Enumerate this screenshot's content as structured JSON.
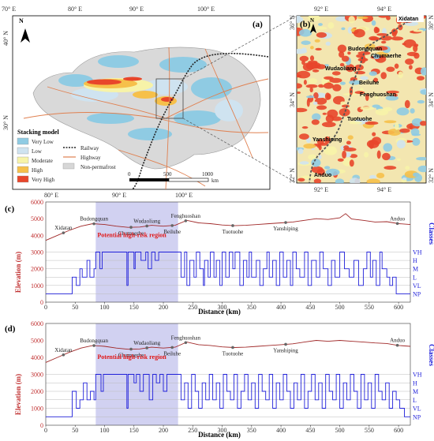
{
  "panel_a": {
    "label": "(a)",
    "north": "N",
    "lon_ticks": [
      "70° E",
      "80° E",
      "90° E",
      "100° E"
    ],
    "lon_ticks_bottom": [
      "80° E",
      "90° E",
      "100° E"
    ],
    "lat_ticks": [
      "40° N",
      "30° N"
    ],
    "scale_labels": [
      "0",
      "500",
      "1000"
    ],
    "scale_unit": "km",
    "legend_title": "Stacking model",
    "legend_items": [
      {
        "label": "Very Low",
        "color": "#8fcbe3"
      },
      {
        "label": "Low",
        "color": "#cfe3f0"
      },
      {
        "label": "Moderate",
        "color": "#f7f3a8"
      },
      {
        "label": "High",
        "color": "#f6c04a"
      },
      {
        "label": "Very High",
        "color": "#e8462b"
      }
    ],
    "legend_lines": [
      {
        "label": "Railway"
      },
      {
        "label": "Highway"
      }
    ],
    "legend_nonperm": {
      "label": "Non-permafrost",
      "color": "#d7d7d7"
    }
  },
  "panel_b": {
    "label": "(b)",
    "north": "N",
    "lon_ticks_top": [
      "92° E",
      "94° E"
    ],
    "lon_ticks_bottom": [
      "92° E",
      "94° E"
    ],
    "lat_ticks_left": [
      "36° N",
      "34° N",
      "32° N"
    ],
    "lat_ticks_right": [
      "36° N",
      "34° N",
      "32° N"
    ],
    "stations": [
      "Xidatan",
      "Budongquan",
      "Chumaerhe",
      "Wudaoliang",
      "Beiluhe",
      "Fenghuoshan",
      "Tuotuohe",
      "Yanshiping",
      "Anduo"
    ]
  },
  "chart_data": [
    {
      "type": "line",
      "panel": "(c)",
      "xlabel": "Distance (km)",
      "ylabel_left": "Elevation (m)",
      "ylabel_right": "Classes",
      "x_ticks": [
        0,
        50,
        100,
        150,
        200,
        250,
        300,
        350,
        400,
        450,
        500,
        550,
        600
      ],
      "xlim": [
        0,
        620
      ],
      "y_left_ticks": [
        0,
        1000,
        2000,
        3000,
        4000,
        5000,
        6000
      ],
      "ylim_left": [
        0,
        6000
      ],
      "class_labels": [
        "VH",
        "H",
        "M",
        "L",
        "VL",
        "NP"
      ],
      "highlight": {
        "x_range": [
          85,
          225
        ],
        "label": "Potential high-risk region"
      },
      "elevation": {
        "x": [
          0,
          20,
          40,
          60,
          80,
          100,
          120,
          140,
          160,
          180,
          200,
          220,
          240,
          260,
          280,
          300,
          320,
          340,
          360,
          380,
          400,
          420,
          440,
          460,
          480,
          500,
          510,
          520,
          540,
          560,
          580,
          600,
          620
        ],
        "y": [
          3700,
          4000,
          4300,
          4550,
          4700,
          4650,
          4550,
          4480,
          4500,
          4600,
          4550,
          4600,
          4900,
          4750,
          4700,
          4620,
          4580,
          4600,
          4650,
          4700,
          4750,
          4800,
          4900,
          5000,
          4950,
          5050,
          5300,
          4980,
          4900,
          4800,
          4820,
          4700,
          4650
        ]
      },
      "stations": [
        {
          "name": "Xidatan",
          "x": 30
        },
        {
          "name": "Budongquan",
          "x": 82
        },
        {
          "name": "Chumaerhe",
          "x": 145
        },
        {
          "name": "Wudaoliang",
          "x": 172
        },
        {
          "name": "Beiluhe",
          "x": 215
        },
        {
          "name": "Fenghuoshan",
          "x": 238
        },
        {
          "name": "Tuotuohe",
          "x": 318
        },
        {
          "name": "Yanshiping",
          "x": 408
        },
        {
          "name": "Anduo",
          "x": 598
        }
      ],
      "classes": {
        "x": [
          0,
          40,
          45,
          52,
          58,
          62,
          70,
          75,
          82,
          85,
          90,
          92,
          96,
          100,
          105,
          138,
          140,
          142,
          150,
          152,
          160,
          162,
          170,
          174,
          180,
          186,
          192,
          198,
          205,
          228,
          230,
          236,
          240,
          245,
          252,
          256,
          262,
          268,
          270,
          276,
          280,
          286,
          290,
          296,
          300,
          306,
          312,
          318,
          322,
          330,
          336,
          342,
          346,
          350,
          358,
          364,
          370,
          376,
          380,
          386,
          392,
          398,
          404,
          410,
          416,
          420,
          426,
          432,
          440,
          446,
          452,
          460,
          466,
          472,
          480,
          486,
          492,
          500,
          508,
          516,
          524,
          532,
          540,
          546,
          552,
          556,
          562,
          568,
          572,
          580,
          585,
          590,
          596,
          602,
          610,
          620
        ],
        "y": [
          0,
          0,
          2,
          1,
          3,
          2,
          4,
          2,
          3,
          5,
          5,
          3,
          5,
          5,
          5,
          1,
          5,
          5,
          3,
          5,
          5,
          4,
          5,
          3,
          5,
          4,
          5,
          5,
          5,
          5,
          2,
          5,
          1,
          4,
          2,
          5,
          3,
          1,
          4,
          2,
          5,
          2,
          4,
          1,
          5,
          2,
          5,
          3,
          5,
          1,
          4,
          2,
          5,
          2,
          4,
          1,
          3,
          5,
          2,
          4,
          1,
          5,
          2,
          4,
          1,
          5,
          3,
          2,
          5,
          1,
          4,
          2,
          5,
          3,
          1,
          4,
          2,
          5,
          3,
          2,
          4,
          1,
          3,
          5,
          2,
          4,
          1,
          5,
          3,
          2,
          1,
          2,
          0,
          0,
          0,
          0
        ]
      }
    },
    {
      "type": "line",
      "panel": "(d)",
      "xlabel": "Distance (km)",
      "ylabel_left": "Elevation (m)",
      "ylabel_right": "Classes",
      "x_ticks": [
        0,
        50,
        100,
        150,
        200,
        250,
        300,
        350,
        400,
        450,
        500,
        550,
        600
      ],
      "xlim": [
        0,
        620
      ],
      "y_left_ticks": [
        0,
        1000,
        2000,
        3000,
        4000,
        5000,
        6000
      ],
      "ylim_left": [
        0,
        6000
      ],
      "class_labels": [
        "VH",
        "H",
        "M",
        "L",
        "VL",
        "NP"
      ],
      "highlight": {
        "x_range": [
          85,
          225
        ],
        "label": "Potential high-risk region"
      },
      "elevation": {
        "x": [
          0,
          20,
          40,
          60,
          80,
          100,
          120,
          140,
          160,
          180,
          200,
          220,
          240,
          260,
          280,
          300,
          320,
          340,
          360,
          380,
          400,
          420,
          440,
          460,
          480,
          500,
          520,
          540,
          560,
          580,
          600,
          620
        ],
        "y": [
          3700,
          4000,
          4300,
          4550,
          4700,
          4650,
          4550,
          4480,
          4500,
          4600,
          4550,
          4600,
          4900,
          4750,
          4700,
          4620,
          4580,
          4600,
          4650,
          4700,
          4750,
          4800,
          4900,
          5000,
          4950,
          5000,
          4950,
          4900,
          4850,
          4820,
          4700,
          4650
        ]
      },
      "stations": [
        {
          "name": "Xidatan",
          "x": 30
        },
        {
          "name": "Budongquan",
          "x": 82
        },
        {
          "name": "Chumaerhe",
          "x": 145
        },
        {
          "name": "Wudaoliang",
          "x": 172
        },
        {
          "name": "Beiluhe",
          "x": 215
        },
        {
          "name": "Fenghuoshan",
          "x": 238
        },
        {
          "name": "Tuotuohe",
          "x": 318
        },
        {
          "name": "Yanshiping",
          "x": 408
        },
        {
          "name": "Anduo",
          "x": 598
        }
      ],
      "classes": {
        "x": [
          0,
          40,
          45,
          52,
          58,
          64,
          70,
          76,
          82,
          85,
          90,
          94,
          98,
          104,
          110,
          138,
          140,
          142,
          150,
          154,
          160,
          166,
          172,
          176,
          182,
          188,
          194,
          200,
          206,
          226,
          230,
          236,
          242,
          248,
          254,
          260,
          266,
          272,
          278,
          284,
          290,
          296,
          302,
          308,
          314,
          320,
          326,
          332,
          338,
          344,
          350,
          356,
          362,
          368,
          374,
          380,
          386,
          392,
          398,
          404,
          410,
          416,
          422,
          428,
          434,
          440,
          446,
          452,
          458,
          464,
          470,
          476,
          482,
          488,
          494,
          500,
          506,
          512,
          518,
          524,
          530,
          536,
          542,
          548,
          554,
          560,
          566,
          572,
          578,
          584,
          590,
          596,
          602,
          610,
          620
        ],
        "y": [
          0,
          0,
          3,
          1,
          2,
          4,
          2,
          3,
          2,
          5,
          5,
          3,
          5,
          5,
          5,
          1,
          5,
          5,
          4,
          5,
          3,
          5,
          5,
          2,
          5,
          4,
          5,
          3,
          5,
          5,
          2,
          4,
          1,
          5,
          3,
          1,
          4,
          2,
          5,
          2,
          4,
          1,
          5,
          3,
          2,
          5,
          1,
          3,
          5,
          2,
          4,
          1,
          5,
          3,
          2,
          5,
          1,
          4,
          2,
          5,
          3,
          1,
          4,
          2,
          5,
          1,
          3,
          5,
          2,
          4,
          1,
          5,
          3,
          2,
          5,
          1,
          4,
          2,
          5,
          3,
          1,
          5,
          2,
          4,
          1,
          5,
          3,
          2,
          4,
          1,
          3,
          2,
          1,
          0,
          0
        ]
      }
    }
  ]
}
